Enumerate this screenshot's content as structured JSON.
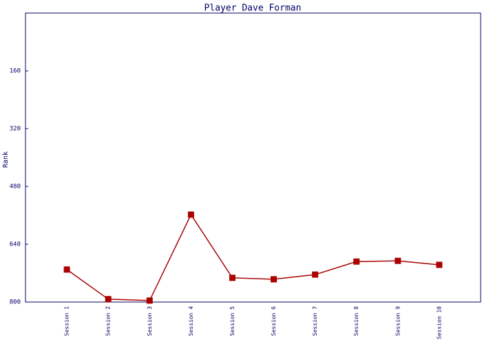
{
  "chart_data": {
    "type": "line",
    "title": "Player Dave Forman",
    "y_label": "Rank",
    "categories": [
      "Session 1",
      "Session 2",
      "Session 3",
      "Session 4",
      "Session 5",
      "Session 6",
      "Session 7",
      "Session 8",
      "Session 9",
      "Session 10"
    ],
    "series": [
      {
        "name": "Rank",
        "color": "#aa0000",
        "values": [
          710,
          792,
          796,
          558,
          733,
          737,
          724,
          688,
          686,
          697
        ]
      }
    ],
    "ylim": [
      0,
      800
    ],
    "yticks": [
      160,
      320,
      480,
      640,
      800
    ],
    "y_inverted": true,
    "grid": false
  }
}
